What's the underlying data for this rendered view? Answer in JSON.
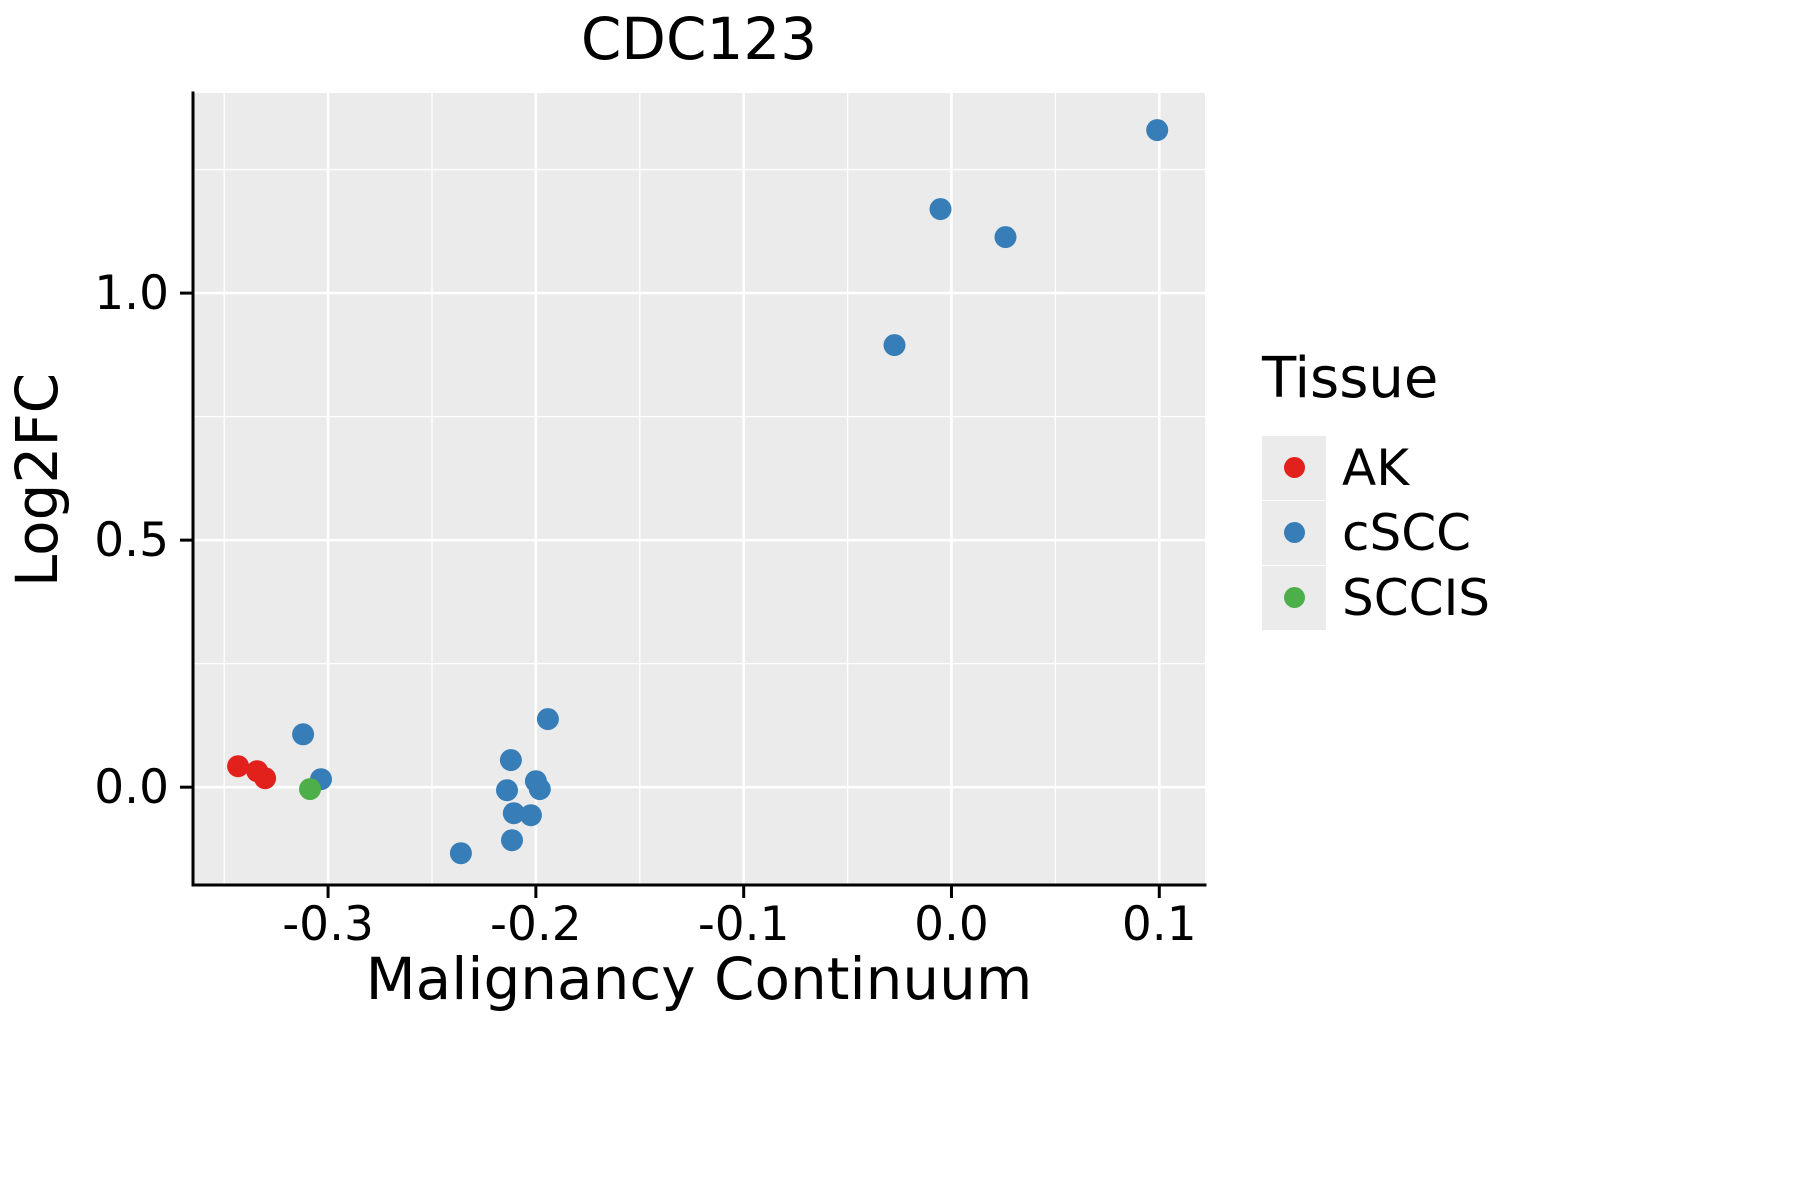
{
  "chart": {
    "title": "CDC123",
    "xlabel": "Malignancy Continuum",
    "ylabel": "Log2FC",
    "legend_title": "Tissue"
  },
  "chart_data": {
    "type": "scatter",
    "title": "CDC123",
    "xlabel": "Malignancy Continuum",
    "ylabel": "Log2FC",
    "xlim": [
      -0.365,
      0.122
    ],
    "ylim": [
      -0.198,
      1.405
    ],
    "xticks": [
      -0.3,
      -0.2,
      -0.1,
      0.0,
      0.1
    ],
    "yticks": [
      0.0,
      0.5,
      1.0
    ],
    "xticks_minor": [
      -0.35,
      -0.25,
      -0.15,
      -0.05,
      0.05
    ],
    "yticks_minor": [
      0.25,
      0.75,
      1.25
    ],
    "grid": true,
    "panel_background": "#EBEBEB",
    "grid_color": "#FFFFFF",
    "axis_color": "#000000",
    "legend": {
      "title": "Tissue",
      "position": "right"
    },
    "series": [
      {
        "name": "AK",
        "color": "#E2201C",
        "points": [
          [
            -0.3433,
            0.0425
          ],
          [
            -0.3341,
            0.0324
          ],
          [
            -0.3303,
            0.0182
          ]
        ]
      },
      {
        "name": "cSCC",
        "color": "#377EB8",
        "points": [
          [
            -0.312,
            0.107
          ],
          [
            -0.3034,
            0.0162
          ],
          [
            -0.2361,
            -0.1336
          ],
          [
            -0.212,
            0.0547
          ],
          [
            -0.1942,
            0.1377
          ],
          [
            -0.2139,
            -0.0061
          ],
          [
            -0.2,
            0.0121
          ],
          [
            -0.1981,
            -0.004
          ],
          [
            -0.2024,
            -0.0567
          ],
          [
            -0.2106,
            -0.0526
          ],
          [
            -0.2115,
            -0.1073
          ],
          [
            -0.0274,
            0.8947
          ],
          [
            -0.0053,
            1.17
          ],
          [
            0.026,
            1.1134
          ],
          [
            0.099,
            1.33
          ]
        ]
      },
      {
        "name": "SCCIS",
        "color": "#4DAF4A",
        "points": [
          [
            -0.3087,
            -0.004
          ]
        ]
      }
    ]
  }
}
